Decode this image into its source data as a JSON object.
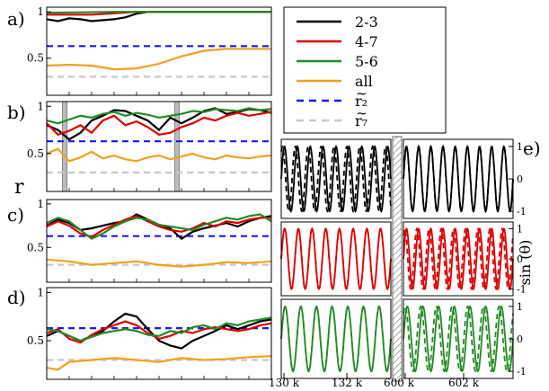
{
  "figure": {
    "panel_labels": {
      "a": "a)",
      "b": "b)",
      "c": "c)",
      "d": "d)",
      "e": "e)"
    },
    "left_ylabel": "r",
    "right_ylabel": "sin (θ)",
    "r_tick_labels": [
      "1",
      "0.5"
    ],
    "sin_tick_labels": [
      "1",
      "0",
      "-1"
    ],
    "x_tick_labels": [
      "130 k",
      "132 k",
      "600 k",
      "602 k"
    ]
  },
  "legend": {
    "entries": [
      {
        "label": "2-3",
        "color": "#000000",
        "style": "solid"
      },
      {
        "label": "4-7",
        "color": "#dd0000",
        "style": "solid"
      },
      {
        "label": "5-6",
        "color": "#228b22",
        "style": "solid"
      },
      {
        "label": "all",
        "color": "#f2a020",
        "style": "solid"
      },
      {
        "label": "r₂",
        "tilde": "~",
        "color": "#1a1aee",
        "style": "dashed"
      },
      {
        "label": "r₇",
        "tilde": "~",
        "color": "#c8c8c8",
        "style": "dashed"
      }
    ]
  },
  "colors": {
    "black": "#000000",
    "red": "#dd0000",
    "green": "#228b22",
    "orange": "#f2a020",
    "blue": "#1a1aee",
    "gray": "#c8c8c8",
    "shade": "#bbbbbb"
  },
  "chart_data": [
    {
      "panel": "a",
      "type": "line",
      "ylim": [
        0.1,
        1.05
      ],
      "series": [
        {
          "name": "2-3",
          "x": [
            0,
            0.05,
            0.1,
            0.15,
            0.2,
            0.3,
            0.35,
            0.4,
            0.45,
            1
          ],
          "y": [
            0.92,
            0.9,
            0.93,
            0.92,
            0.9,
            0.92,
            0.94,
            0.98,
            1,
            1
          ]
        },
        {
          "name": "4-7",
          "x": [
            0,
            0.2,
            0.4,
            1
          ],
          "y": [
            0.97,
            0.97,
            1,
            1
          ]
        },
        {
          "name": "5-6",
          "x": [
            0,
            0.3,
            0.4,
            1
          ],
          "y": [
            0.99,
            1,
            1,
            1
          ]
        },
        {
          "name": "all",
          "x": [
            0,
            0.1,
            0.2,
            0.3,
            0.4,
            0.5,
            0.6,
            0.7,
            0.8,
            1
          ],
          "y": [
            0.42,
            0.43,
            0.42,
            0.38,
            0.39,
            0.44,
            0.52,
            0.58,
            0.6,
            0.6
          ]
        },
        {
          "name": "r₂",
          "x": [
            0,
            1
          ],
          "y": [
            0.63,
            0.63
          ]
        },
        {
          "name": "r₇",
          "x": [
            0,
            1
          ],
          "y": [
            0.3,
            0.3
          ]
        }
      ]
    },
    {
      "panel": "b",
      "type": "line",
      "ylim": [
        0.1,
        1.05
      ],
      "series": [
        {
          "name": "2-3",
          "x": [
            0,
            0.05,
            0.1,
            0.15,
            0.2,
            0.25,
            0.3,
            0.35,
            0.4,
            0.45,
            0.5,
            0.55,
            0.6,
            0.65,
            0.7,
            0.75,
            0.8,
            0.85,
            0.9,
            0.95,
            1
          ],
          "y": [
            0.8,
            0.75,
            0.65,
            0.72,
            0.85,
            0.9,
            0.96,
            0.95,
            0.9,
            0.85,
            0.75,
            0.88,
            0.82,
            0.88,
            0.95,
            0.98,
            0.92,
            0.94,
            0.97,
            0.96,
            0.93
          ]
        },
        {
          "name": "4-7",
          "x": [
            0,
            0.05,
            0.1,
            0.15,
            0.2,
            0.25,
            0.3,
            0.35,
            0.4,
            0.45,
            0.5,
            0.55,
            0.6,
            0.65,
            0.7,
            0.75,
            0.8,
            0.85,
            0.9,
            0.95,
            1
          ],
          "y": [
            0.82,
            0.7,
            0.74,
            0.8,
            0.72,
            0.85,
            0.9,
            0.8,
            0.84,
            0.78,
            0.7,
            0.72,
            0.78,
            0.82,
            0.88,
            0.85,
            0.9,
            0.93,
            0.9,
            0.92,
            0.94
          ]
        },
        {
          "name": "5-6",
          "x": [
            0,
            0.05,
            0.1,
            0.15,
            0.2,
            0.25,
            0.3,
            0.35,
            0.4,
            0.45,
            0.5,
            0.55,
            0.6,
            0.65,
            0.7,
            0.75,
            0.8,
            0.85,
            0.9,
            0.95,
            1
          ],
          "y": [
            0.85,
            0.82,
            0.86,
            0.9,
            0.88,
            0.92,
            0.94,
            0.9,
            0.93,
            0.91,
            0.88,
            0.9,
            0.92,
            0.95,
            0.94,
            0.97,
            0.96,
            0.95,
            0.98,
            0.96,
            0.97
          ]
        },
        {
          "name": "all",
          "x": [
            0,
            0.05,
            0.1,
            0.15,
            0.2,
            0.25,
            0.3,
            0.35,
            0.4,
            0.45,
            0.5,
            0.55,
            0.6,
            0.65,
            0.7,
            0.75,
            0.8,
            0.85,
            0.9,
            0.95,
            1
          ],
          "y": [
            0.5,
            0.55,
            0.42,
            0.46,
            0.52,
            0.45,
            0.48,
            0.44,
            0.42,
            0.46,
            0.48,
            0.44,
            0.47,
            0.5,
            0.46,
            0.44,
            0.48,
            0.46,
            0.45,
            0.47,
            0.48
          ]
        },
        {
          "name": "r₂",
          "x": [
            0,
            1
          ],
          "y": [
            0.63,
            0.63
          ]
        },
        {
          "name": "r₇",
          "x": [
            0,
            1
          ],
          "y": [
            0.3,
            0.3
          ]
        }
      ],
      "shaded_x": [
        [
          0.07,
          0.09
        ],
        [
          0.57,
          0.59
        ]
      ]
    },
    {
      "panel": "c",
      "type": "line",
      "ylim": [
        0.1,
        1.05
      ],
      "series": [
        {
          "name": "2-3",
          "x": [
            0,
            0.05,
            0.1,
            0.15,
            0.2,
            0.25,
            0.3,
            0.35,
            0.4,
            0.45,
            0.5,
            0.55,
            0.6,
            0.65,
            0.7,
            0.75,
            0.8,
            0.85,
            0.9,
            0.95,
            1
          ],
          "y": [
            0.75,
            0.82,
            0.78,
            0.7,
            0.72,
            0.75,
            0.78,
            0.8,
            0.88,
            0.82,
            0.76,
            0.72,
            0.6,
            0.68,
            0.72,
            0.75,
            0.78,
            0.74,
            0.8,
            0.84,
            0.86
          ]
        },
        {
          "name": "4-7",
          "x": [
            0,
            0.05,
            0.1,
            0.15,
            0.2,
            0.25,
            0.3,
            0.35,
            0.4,
            0.45,
            0.5,
            0.55,
            0.6,
            0.65,
            0.7,
            0.75,
            0.8,
            0.85,
            0.9,
            0.95,
            1
          ],
          "y": [
            0.74,
            0.8,
            0.75,
            0.66,
            0.62,
            0.7,
            0.76,
            0.82,
            0.86,
            0.8,
            0.74,
            0.7,
            0.68,
            0.72,
            0.78,
            0.74,
            0.8,
            0.78,
            0.82,
            0.84,
            0.84
          ]
        },
        {
          "name": "5-6",
          "x": [
            0,
            0.05,
            0.1,
            0.15,
            0.2,
            0.25,
            0.3,
            0.35,
            0.4,
            0.45,
            0.5,
            0.55,
            0.6,
            0.65,
            0.7,
            0.75,
            0.8,
            0.85,
            0.9,
            0.95,
            1
          ],
          "y": [
            0.78,
            0.84,
            0.8,
            0.7,
            0.6,
            0.66,
            0.74,
            0.8,
            0.84,
            0.82,
            0.76,
            0.74,
            0.72,
            0.7,
            0.76,
            0.8,
            0.84,
            0.82,
            0.86,
            0.88,
            0.8
          ]
        },
        {
          "name": "all",
          "x": [
            0,
            0.1,
            0.2,
            0.3,
            0.4,
            0.5,
            0.6,
            0.7,
            0.8,
            0.9,
            1
          ],
          "y": [
            0.36,
            0.34,
            0.3,
            0.32,
            0.34,
            0.3,
            0.28,
            0.3,
            0.33,
            0.32,
            0.34
          ]
        },
        {
          "name": "r₂",
          "x": [
            0,
            1
          ],
          "y": [
            0.63,
            0.63
          ]
        },
        {
          "name": "r₇",
          "x": [
            0,
            1
          ],
          "y": [
            0.3,
            0.3
          ]
        }
      ]
    },
    {
      "panel": "d",
      "type": "line",
      "ylim": [
        0.1,
        1.05
      ],
      "series": [
        {
          "name": "2-3",
          "x": [
            0,
            0.05,
            0.1,
            0.15,
            0.2,
            0.25,
            0.3,
            0.35,
            0.4,
            0.45,
            0.5,
            0.55,
            0.6,
            0.65,
            0.7,
            0.75,
            0.8,
            0.85,
            0.9,
            0.95,
            1
          ],
          "y": [
            0.55,
            0.6,
            0.55,
            0.5,
            0.55,
            0.6,
            0.7,
            0.78,
            0.75,
            0.62,
            0.5,
            0.45,
            0.42,
            0.5,
            0.55,
            0.6,
            0.66,
            0.62,
            0.66,
            0.7,
            0.72
          ]
        },
        {
          "name": "4-7",
          "x": [
            0,
            0.05,
            0.1,
            0.15,
            0.2,
            0.25,
            0.3,
            0.35,
            0.4,
            0.45,
            0.5,
            0.55,
            0.6,
            0.65,
            0.7,
            0.75,
            0.8,
            0.85,
            0.9,
            0.95,
            1
          ],
          "y": [
            0.58,
            0.62,
            0.52,
            0.48,
            0.56,
            0.62,
            0.66,
            0.7,
            0.66,
            0.58,
            0.52,
            0.55,
            0.6,
            0.58,
            0.62,
            0.64,
            0.62,
            0.6,
            0.62,
            0.66,
            0.68
          ]
        },
        {
          "name": "5-6",
          "x": [
            0,
            0.05,
            0.1,
            0.15,
            0.2,
            0.25,
            0.3,
            0.35,
            0.4,
            0.45,
            0.5,
            0.55,
            0.6,
            0.65,
            0.7,
            0.75,
            0.8,
            0.85,
            0.9,
            0.95,
            1
          ],
          "y": [
            0.62,
            0.6,
            0.55,
            0.5,
            0.54,
            0.58,
            0.6,
            0.62,
            0.6,
            0.56,
            0.55,
            0.6,
            0.58,
            0.64,
            0.66,
            0.62,
            0.68,
            0.66,
            0.7,
            0.72,
            0.74
          ]
        },
        {
          "name": "all",
          "x": [
            0,
            0.05,
            0.1,
            0.2,
            0.3,
            0.4,
            0.5,
            0.6,
            0.7,
            0.8,
            0.9,
            1
          ],
          "y": [
            0.22,
            0.2,
            0.28,
            0.3,
            0.32,
            0.3,
            0.28,
            0.32,
            0.3,
            0.31,
            0.33,
            0.34
          ]
        },
        {
          "name": "r₂",
          "x": [
            0,
            1
          ],
          "y": [
            0.63,
            0.63
          ]
        },
        {
          "name": "r₇",
          "x": [
            0,
            1
          ],
          "y": [
            0.3,
            0.3
          ]
        }
      ]
    },
    {
      "panel": "e",
      "type": "line",
      "x_segments": [
        {
          "from": 130000,
          "to": 133500,
          "ticks": [
            130000,
            132000
          ]
        },
        {
          "from": 600000,
          "to": 603500,
          "ticks": [
            600000,
            602000
          ]
        }
      ],
      "ylim": [
        -1.1,
        1.1
      ],
      "rows": [
        {
          "color": "black",
          "segments": [
            {
              "cycles": 8.5,
              "phase_lag": 1.0
            },
            {
              "cycles": 9,
              "phase_lag": 0
            }
          ]
        },
        {
          "color": "red",
          "segments": [
            {
              "cycles": 8,
              "phase_lag": 0
            },
            {
              "cycles": 9,
              "phase_lag": 0.9
            }
          ]
        },
        {
          "color": "green",
          "segments": [
            {
              "cycles": 7,
              "phase_lag": 0
            },
            {
              "cycles": 7,
              "phase_lag": 0.9
            }
          ]
        }
      ]
    }
  ]
}
